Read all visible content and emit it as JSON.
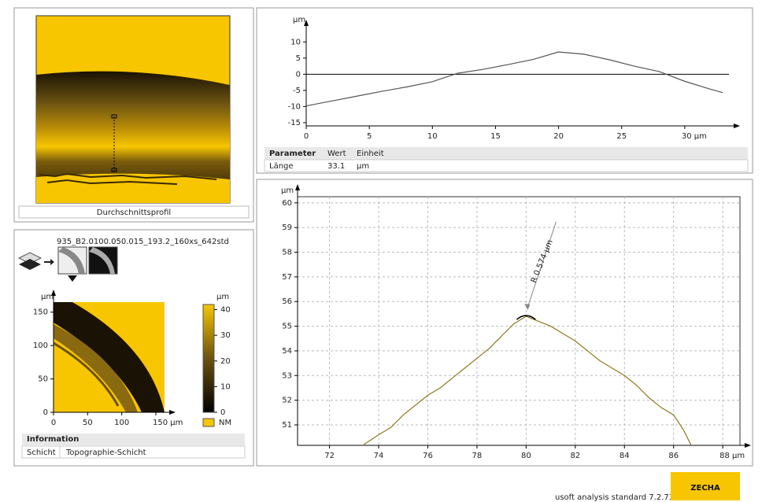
{
  "profile_panel": {
    "caption": "Durchschnittsprofil"
  },
  "layer_panel": {
    "file_name": "935_B2.0100.050.015_193.2_160xs_642std",
    "info_title": "Information",
    "info_key": "Schicht",
    "info_value": "Topographie-Schicht"
  },
  "parameter_table": {
    "header": [
      "Parameter",
      "Wert",
      "Einheit"
    ],
    "rows": [
      [
        "Länge",
        33.1,
        "µm"
      ]
    ]
  },
  "footer": {
    "version": "usoft analysis standard 7.2.7344",
    "logo": "ZECHA"
  },
  "chart_data": [
    {
      "type": "line",
      "ylabel": "µm",
      "x": [
        0,
        2,
        4,
        6,
        8,
        10,
        12,
        14,
        16,
        18,
        20,
        22,
        24,
        26,
        28,
        30,
        32,
        33
      ],
      "values": [
        -9.8,
        -8.3,
        -6.8,
        -5.3,
        -3.9,
        -2.3,
        0.3,
        1.5,
        3,
        4.6,
        6.9,
        6.2,
        4.5,
        2.5,
        0.8,
        -2.2,
        -4.6,
        -5.7
      ],
      "color": "#555555",
      "xlim": [
        0,
        33.5
      ],
      "ylim": [
        -16,
        13
      ],
      "xticks": [
        0,
        5,
        10,
        15,
        20,
        25,
        {
          "value": 30,
          "label": "30 µm"
        }
      ],
      "yticks": [
        -15,
        -10,
        -5,
        0,
        5,
        10
      ],
      "grid": false,
      "zero_line": true
    },
    {
      "type": "line",
      "ylabel": "µm",
      "annotation": "R 0.574 µm",
      "x": [
        73.4,
        74,
        74.5,
        75,
        75.5,
        76,
        76.5,
        77,
        77.5,
        78,
        78.5,
        79,
        79.5,
        80,
        80.5,
        81,
        81.5,
        82,
        82.5,
        83,
        83.5,
        84,
        84.5,
        85,
        85.5,
        86,
        86.4,
        86.7
      ],
      "values": [
        50.2,
        50.6,
        50.9,
        51.4,
        51.8,
        52.2,
        52.5,
        52.9,
        53.3,
        53.7,
        54.1,
        54.6,
        55.1,
        55.4,
        55.2,
        55.0,
        54.7,
        54.4,
        54.0,
        53.6,
        53.3,
        53.0,
        52.6,
        52.1,
        51.7,
        51.4,
        50.8,
        50.2
      ],
      "color": "#8a7a1e",
      "xlim": [
        70.7,
        88.7
      ],
      "ylim": [
        50.17,
        60.25
      ],
      "xticks": [
        72,
        74,
        76,
        78,
        80,
        82,
        84,
        86,
        {
          "value": 88,
          "label": "88 µm"
        }
      ],
      "yticks": [
        51,
        52,
        53,
        54,
        55,
        56,
        57,
        58,
        59,
        60
      ],
      "grid": true,
      "zero_line": false
    },
    {
      "type": "heatmap",
      "ylabel": "µm",
      "xlim": [
        0,
        162.7
      ],
      "ylim": [
        0,
        165
      ],
      "xticks": [
        0,
        50,
        100,
        {
          "value": 150,
          "label": "150 µm"
        }
      ],
      "yticks": [
        0,
        50,
        100,
        150
      ],
      "grid": false,
      "colorbar": {
        "label": "µm",
        "lim": [
          0,
          42
        ],
        "ticks": [
          0,
          10,
          20,
          30,
          40
        ]
      },
      "legend": "NM"
    }
  ]
}
